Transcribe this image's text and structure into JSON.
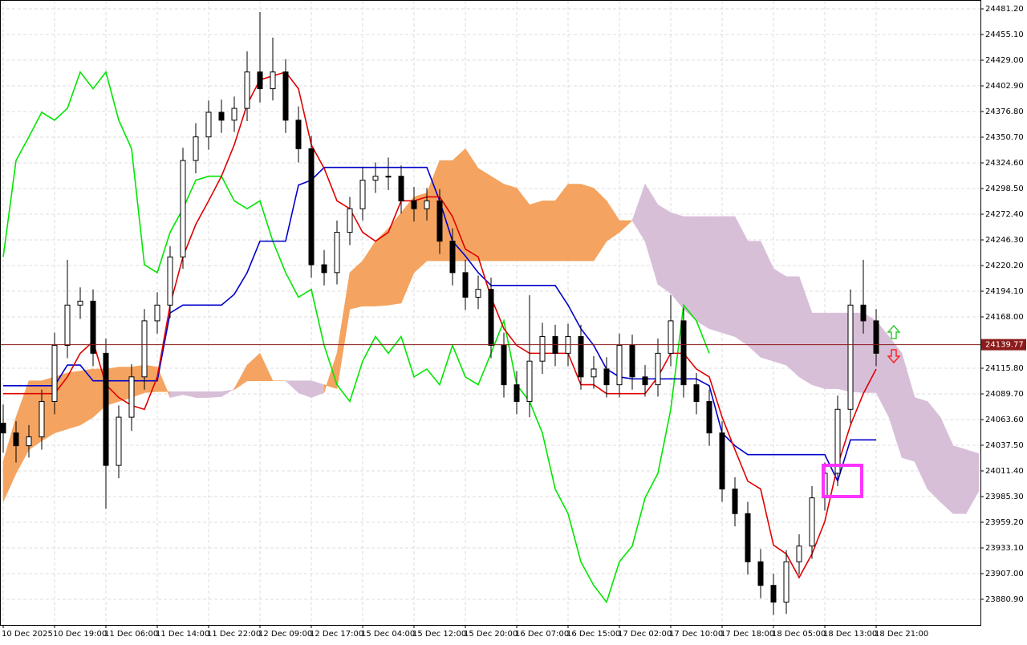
{
  "chart_data": {
    "type": "candlestick",
    "grid": true,
    "ylim": [
      23854.8,
      24490.2
    ],
    "yticks": [
      {
        "value": 24481.2,
        "label": "24481.20"
      },
      {
        "value": 24455.1,
        "label": "24455.10"
      },
      {
        "value": 24429,
        "label": "24429.00"
      },
      {
        "value": 24402.9,
        "label": "24402.90"
      },
      {
        "value": 24376.8,
        "label": "24376.80"
      },
      {
        "value": 24350.7,
        "label": "24350.70"
      },
      {
        "value": 24324.6,
        "label": "24324.60"
      },
      {
        "value": 24298.5,
        "label": "24298.50"
      },
      {
        "value": 24272.4,
        "label": "24272.40"
      },
      {
        "value": 24246.3,
        "label": "24246.30"
      },
      {
        "value": 24220.2,
        "label": "24220.20"
      },
      {
        "value": 24194.1,
        "label": "24194.10"
      },
      {
        "value": 24168,
        "label": "24168.00"
      },
      {
        "value": 24115.8,
        "label": "24115.80"
      },
      {
        "value": 24089.7,
        "label": "24089.70"
      },
      {
        "value": 24063.6,
        "label": "24063.60"
      },
      {
        "value": 24037.5,
        "label": "24037.50"
      },
      {
        "value": 24011.4,
        "label": "24011.40"
      },
      {
        "value": 23985.3,
        "label": "23985.30"
      },
      {
        "value": 23959.2,
        "label": "23959.20"
      },
      {
        "value": 23933.1,
        "label": "23933.10"
      },
      {
        "value": 23907,
        "label": "23907.00"
      },
      {
        "value": 23880.9,
        "label": "23880.90"
      }
    ],
    "x": [
      "10 Dec 2025",
      null,
      null,
      null,
      "10 Dec 19:00",
      null,
      null,
      null,
      "11 Dec 06:00",
      null,
      null,
      null,
      "11 Dec 14:00",
      null,
      null,
      null,
      "11 Dec 22:00",
      null,
      null,
      null,
      "12 Dec 09:00",
      null,
      null,
      null,
      "12 Dec 17:00",
      null,
      null,
      null,
      "15 Dec 04:00",
      null,
      null,
      null,
      "15 Dec 12:00",
      null,
      null,
      null,
      "15 Dec 20:00",
      null,
      null,
      null,
      "16 Dec 07:00",
      null,
      null,
      null,
      "16 Dec 15:00",
      null,
      null,
      null,
      "17 Dec 02:00",
      null,
      null,
      null,
      "17 Dec 10:00",
      null,
      null,
      null,
      "17 Dec 18:00",
      null,
      null,
      null,
      "18 Dec 05:00",
      null,
      null,
      null,
      "18 Dec 13:00",
      null,
      null,
      null,
      "18 Dec 21:00"
    ],
    "open": [
      24060,
      24050,
      24037,
      24046,
      24082,
      24139,
      24180,
      24184,
      24131,
      24017,
      24066,
      24107,
      24164,
      24180,
      24229,
      24327,
      24351,
      24376,
      24368,
      24380,
      24417,
      24400,
      24417,
      24368,
      24339,
      24221,
      24213,
      24254,
      24278,
      24307,
      24311,
      24311,
      24286,
      24278,
      24286,
      24245,
      24213,
      24188,
      24196,
      24139,
      24099,
      24082,
      24123,
      24148,
      24131,
      24148,
      24107,
      24115,
      24099,
      24139,
      24107,
      24099,
      24131,
      24164,
      24099,
      24082,
      24050,
      23993,
      23968,
      23919,
      23895,
      23878,
      23919,
      23935,
      23984,
      24009,
      24074,
      24180,
      24164
    ],
    "high": [
      24079,
      24062,
      24058,
      24094,
      24152,
      24226,
      24198,
      24196,
      24146,
      24078,
      24120,
      24176,
      24193,
      24240,
      24340,
      24365,
      24388,
      24389,
      24392,
      24438,
      24478,
      24452,
      24430,
      24382,
      24352,
      24236,
      24266,
      24290,
      24320,
      24325,
      24330,
      24322,
      24300,
      24299,
      24298,
      24258,
      24226,
      24210,
      24208,
      24152,
      24113,
      24190,
      24162,
      24160,
      24161,
      24160,
      24128,
      24127,
      24151,
      24150,
      24119,
      24146,
      24190,
      24177,
      24111,
      24094,
      24062,
      24005,
      23980,
      23932,
      23907,
      23931,
      23947,
      23996,
      24020,
      24088,
      24196,
      24226,
      24176
    ],
    "low": [
      24030,
      24020,
      24025,
      24033,
      24069,
      24126,
      24166,
      24118,
      23973,
      24004,
      24052,
      24094,
      24151,
      24167,
      24217,
      24314,
      24338,
      24355,
      24356,
      24367,
      24386,
      24388,
      24355,
      24325,
      24208,
      24200,
      24201,
      24241,
      24266,
      24294,
      24297,
      24273,
      24265,
      24266,
      24232,
      24200,
      24175,
      24176,
      24126,
      24086,
      24069,
      24066,
      24110,
      24118,
      24118,
      24094,
      24095,
      24086,
      24086,
      24094,
      24087,
      24087,
      24118,
      24086,
      24069,
      24037,
      23980,
      23955,
      23906,
      23882,
      23865,
      23866,
      23906,
      23922,
      23971,
      23996,
      24060,
      24151,
      24118
    ],
    "close": [
      24050,
      24037,
      24046,
      24082,
      24139,
      24180,
      24184,
      24131,
      24017,
      24066,
      24107,
      24164,
      24180,
      24229,
      24327,
      24351,
      24376,
      24368,
      24380,
      24417,
      24400,
      24417,
      24368,
      24339,
      24221,
      24213,
      24254,
      24278,
      24307,
      24311,
      24311,
      24286,
      24278,
      24286,
      24245,
      24213,
      24188,
      24196,
      24139,
      24099,
      24082,
      24123,
      24148,
      24131,
      24148,
      24107,
      24115,
      24099,
      24139,
      24107,
      24099,
      24131,
      24164,
      24099,
      24082,
      24050,
      23993,
      23968,
      23919,
      23895,
      23878,
      23919,
      23935,
      23984,
      24009,
      24074,
      24180,
      24164,
      24131
    ],
    "bull_color": "#ffffff",
    "bear_color": "#000000",
    "lines": [
      {
        "color": "#00e600",
        "values": [
          24229,
          24327,
          24351,
          24376,
          24368,
          24380,
          24417,
          24400,
          24417,
          24368,
          24339,
          24221,
          24213,
          24254,
          24278,
          24307,
          24311,
          24311,
          24286,
          24278,
          24286,
          24245,
          24213,
          24188,
          24196,
          24139,
          24099,
          24082,
          24123,
          24148,
          24131,
          24148,
          24107,
          24115,
          24099,
          24139,
          24107,
          24099,
          24131,
          24164,
          24099,
          24082,
          24050,
          23993,
          23968,
          23919,
          23895,
          23878,
          23919,
          23935,
          23984,
          24009,
          24074,
          24180,
          24164,
          24131,
          null,
          null,
          null,
          null,
          null,
          null,
          null,
          null,
          null,
          null,
          null,
          null,
          null
        ]
      },
      {
        "color": "#0000cc",
        "values": [
          24098,
          24098,
          24098,
          24098,
          24098,
          24119,
          24119,
          24103,
          24103,
          24103,
          24103,
          24103,
          24103,
          24172,
          24180,
          24180,
          24180,
          24180,
          24191,
          24213,
          24245,
          24245,
          24245,
          24302,
          24307,
          24320,
          24320,
          24320,
          24320,
          24320,
          24320,
          24320,
          24320,
          24320,
          24286,
          24245,
          24230,
          24213,
          24200,
          24200,
          24200,
          24200,
          24200,
          24200,
          24180,
          24156,
          24139,
          24115,
          24107,
          24105,
          24105,
          24105,
          24105,
          24105,
          24105,
          24098,
          24050,
          24037,
          24028,
          24028,
          24028,
          24028,
          24028,
          24028,
          24028,
          24001,
          24043,
          24043,
          24043
        ]
      },
      {
        "color": "#e00000",
        "values": [
          24090,
          24090,
          24090,
          24090,
          24090,
          24107,
          24131,
          24143,
          24099,
          24086,
          24078,
          24074,
          24107,
          24180,
          24229,
          24262,
          24286,
          24311,
          24343,
          24384,
          24409,
          24413,
          24417,
          24400,
          24343,
          24319,
          24286,
          24278,
          24254,
          24245,
          24254,
          24286,
          24286,
          24290,
          24290,
          24270,
          24237,
          24229,
          24188,
          24156,
          24139,
          24131,
          24131,
          24131,
          24131,
          24099,
          24099,
          24090,
          24090,
          24090,
          24090,
          24107,
          24131,
          24131,
          24115,
          24107,
          24066,
          24033,
          24001,
          23993,
          23936,
          23927,
          23903,
          23927,
          23960,
          24017,
          24058,
          24090,
          24115
        ]
      }
    ],
    "cloud": {
      "up_color": "#f4a460",
      "down_color": "#d8bfd8",
      "span_a": [
        24021,
        24066,
        24103,
        24103,
        24107,
        24111,
        24113,
        24115,
        24115,
        24117,
        24117,
        24119,
        24117,
        24086,
        24089,
        24086,
        24086,
        24087,
        24095,
        24119,
        24131,
        24103,
        24103,
        24091,
        24086,
        24091,
        24131,
        24213,
        24225,
        24245,
        24258,
        24274,
        24290,
        24294,
        24327,
        24327,
        24339,
        24319,
        24311,
        24303,
        24299,
        24282,
        24286,
        24286,
        24303,
        24303,
        24299,
        24286,
        24266,
        24266,
        24245,
        24201,
        24192,
        24176,
        24164,
        24156,
        24152,
        24148,
        24139,
        24127,
        24123,
        24119,
        24107,
        24099,
        24095,
        24095,
        24092,
        24091,
        24091,
        24066,
        24025,
        24021,
        23993,
        23980,
        23968,
        23968,
        23991
      ],
      "span_b": [
        23980,
        24009,
        24033,
        24042,
        24050,
        24054,
        24058,
        24066,
        24078,
        24082,
        24086,
        24091,
        24092,
        24092,
        24092,
        24092,
        24092,
        24092,
        24094,
        24103,
        24103,
        24103,
        24103,
        24103,
        24103,
        24099,
        24095,
        24176,
        24179,
        24179,
        24180,
        24182,
        24213,
        24225,
        24225,
        24225,
        24225,
        24225,
        24225,
        24225,
        24225,
        24225,
        24225,
        24225,
        24225,
        24225,
        24225,
        24245,
        24254,
        24266,
        24303,
        24282,
        24274,
        24270,
        24270,
        24270,
        24270,
        24270,
        24245,
        24245,
        24217,
        24209,
        24209,
        24172,
        24172,
        24172,
        24172,
        24172,
        24164,
        24148,
        24131,
        24086,
        24082,
        24066,
        24037,
        24033,
        24029
      ]
    },
    "last_price": 24139.77,
    "last_price_color": "#8b1a1a"
  }
}
